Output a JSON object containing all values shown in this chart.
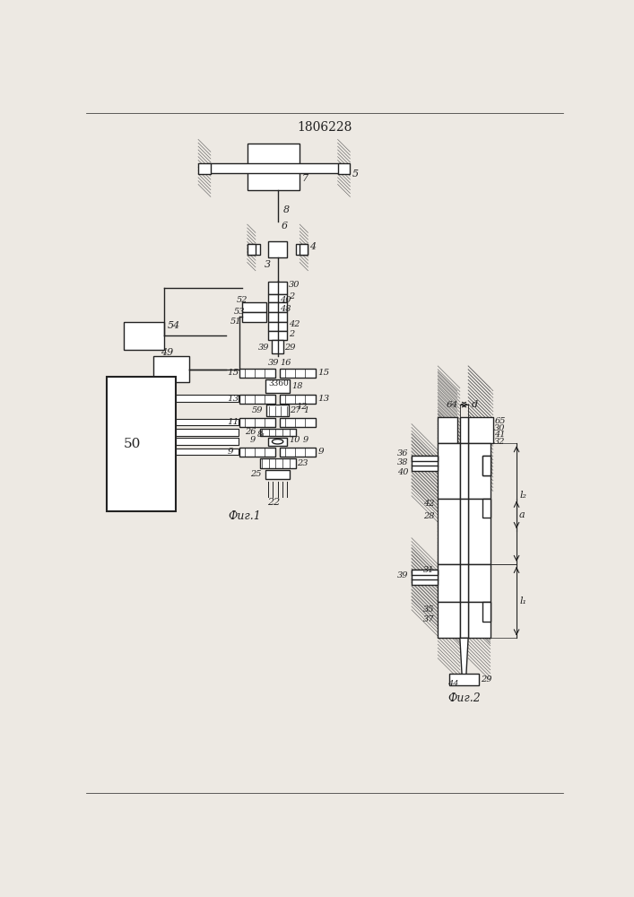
{
  "title": "1806228",
  "fig1_label": "Фиг.1",
  "fig2_label": "Фиг.2",
  "bg_color": "#ede9e3",
  "line_color": "#222222"
}
